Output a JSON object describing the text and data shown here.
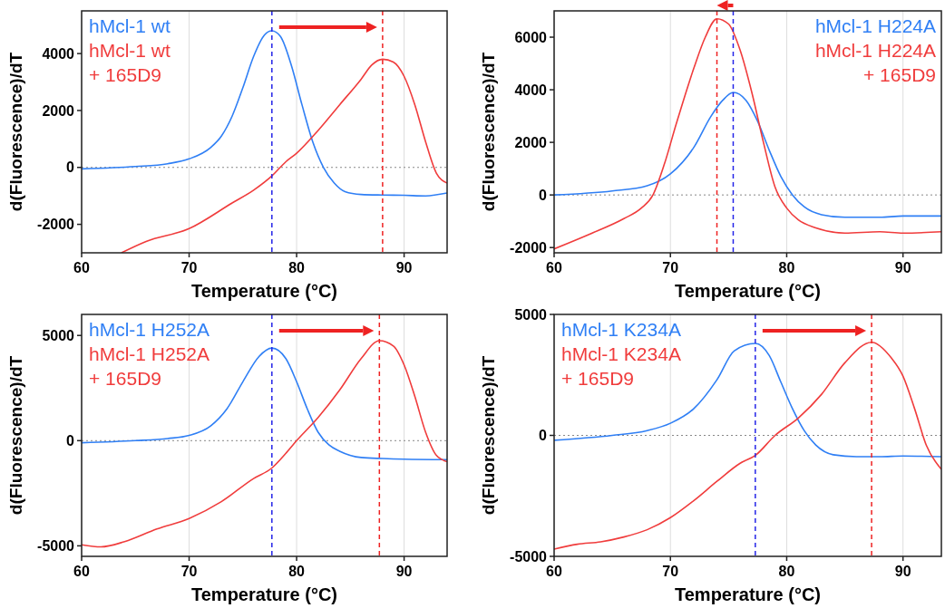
{
  "chart_data": [
    {
      "type": "line",
      "xlabel": "Temperature (°C)",
      "ylabel": "d(Fluorescence)/dT",
      "xlim": [
        60,
        94
      ],
      "ylim": [
        -3000,
        5500
      ],
      "xticks": [
        60,
        70,
        80,
        90
      ],
      "yticks": [
        -2000,
        0,
        2000,
        4000
      ],
      "grid": "x",
      "legend": "top left",
      "series": [
        {
          "name": "hMcl-1 wt",
          "color": "#2f7ff5",
          "x": [
            60,
            65,
            68,
            70,
            72,
            73,
            74,
            75,
            76,
            77,
            77.7,
            78.5,
            79.5,
            80.5,
            81.5,
            82.5,
            83.5,
            84.5,
            86,
            88,
            90,
            92,
            94
          ],
          "values": [
            -50,
            30,
            130,
            300,
            700,
            1100,
            1800,
            2800,
            3900,
            4650,
            4800,
            4600,
            3600,
            2200,
            900,
            0,
            -550,
            -850,
            -950,
            -970,
            -980,
            -1000,
            -900
          ]
        },
        {
          "name": "hMcl-1 wt + 165D9",
          "color": "#f03c3c",
          "x": [
            63.7,
            66,
            70,
            74,
            76,
            77.7,
            79,
            80,
            82,
            84,
            86,
            87,
            88,
            89,
            90,
            91,
            92,
            93,
            94
          ],
          "values": [
            -3000,
            -2600,
            -2150,
            -1250,
            -800,
            -300,
            200,
            500,
            1300,
            2200,
            3100,
            3600,
            3800,
            3700,
            3200,
            2200,
            900,
            -200,
            -550
          ]
        }
      ],
      "ref_lines": [
        {
          "axis": "y",
          "value": 0,
          "color": "#888888",
          "line_style": "dotted"
        },
        {
          "axis": "x",
          "value": 77.7,
          "color": "#2424e8",
          "line_style": "dashed"
        },
        {
          "axis": "x",
          "value": 88,
          "color": "#ee2222",
          "line_style": "dashed"
        }
      ]
    },
    {
      "type": "line",
      "xlabel": "Temperature (°C)",
      "ylabel": "d(Fluorescence)/dT",
      "xlim": [
        60,
        93.3
      ],
      "ylim": [
        -2200,
        7000
      ],
      "xticks": [
        60,
        70,
        80,
        90
      ],
      "yticks": [
        -2000,
        0,
        2000,
        4000,
        6000
      ],
      "grid": "x",
      "legend": "top right",
      "series": [
        {
          "name": "hMcl-1 H224A",
          "color": "#2f7ff5",
          "x": [
            60,
            65,
            68,
            70,
            72,
            73.5,
            74.5,
            75.4,
            76.5,
            77.5,
            78.5,
            79.5,
            80.5,
            81.5,
            83,
            85,
            88,
            90,
            93.3
          ],
          "values": [
            0,
            150,
            350,
            800,
            1800,
            3000,
            3600,
            3900,
            3600,
            2800,
            1700,
            700,
            0,
            -450,
            -750,
            -850,
            -850,
            -800,
            -800
          ]
        },
        {
          "name": "hMcl-1 H224A + 165D9",
          "color": "#f03c3c",
          "x": [
            60,
            63,
            66,
            67.5,
            68.5,
            69.5,
            70.5,
            72,
            73,
            74,
            75,
            76,
            77,
            78,
            79,
            80,
            81,
            82.5,
            85,
            88,
            90,
            93.3
          ],
          "values": [
            -2050,
            -1500,
            -900,
            -500,
            0,
            1200,
            2700,
            4800,
            6000,
            6700,
            6500,
            5500,
            3900,
            2000,
            300,
            -500,
            -950,
            -1250,
            -1450,
            -1400,
            -1450,
            -1400
          ]
        }
      ],
      "ref_lines": [
        {
          "axis": "y",
          "value": 0,
          "color": "#888888",
          "line_style": "dotted"
        },
        {
          "axis": "x",
          "value": 75.4,
          "color": "#2424e8",
          "line_style": "dashed"
        },
        {
          "axis": "x",
          "value": 74,
          "color": "#ee2222",
          "line_style": "dashed"
        }
      ]
    },
    {
      "type": "line",
      "xlabel": "Temperature (°C)",
      "ylabel": "d(Fluorescence)/dT",
      "xlim": [
        60,
        94
      ],
      "ylim": [
        -5500,
        6000
      ],
      "xticks": [
        60,
        70,
        80,
        90
      ],
      "yticks": [
        -5000,
        0,
        5000
      ],
      "grid": "x",
      "legend": "top left",
      "series": [
        {
          "name": "hMcl-1 H252A",
          "color": "#2f7ff5",
          "x": [
            60,
            65,
            68,
            70,
            72,
            73.5,
            75,
            76.5,
            77.7,
            79,
            80,
            81,
            82,
            83,
            84,
            86,
            88,
            90,
            94
          ],
          "values": [
            -100,
            0,
            100,
            250,
            700,
            1500,
            2800,
            4000,
            4400,
            3900,
            2800,
            1500,
            400,
            -200,
            -500,
            -800,
            -850,
            -880,
            -900
          ]
        },
        {
          "name": "hMcl-1 H252A + 165D9",
          "color": "#f03c3c",
          "x": [
            60,
            61.8,
            64,
            67,
            70,
            73,
            76,
            77.7,
            79,
            80,
            82,
            84,
            86,
            87.7,
            89,
            90,
            91,
            92,
            93,
            94
          ],
          "values": [
            -4950,
            -5050,
            -4800,
            -4200,
            -3700,
            -2900,
            -1800,
            -1300,
            -600,
            0,
            1100,
            2400,
            3900,
            4750,
            4500,
            3600,
            2100,
            400,
            -700,
            -1000
          ]
        }
      ],
      "ref_lines": [
        {
          "axis": "y",
          "value": 0,
          "color": "#888888",
          "line_style": "dotted"
        },
        {
          "axis": "x",
          "value": 77.7,
          "color": "#2424e8",
          "line_style": "dashed"
        },
        {
          "axis": "x",
          "value": 87.7,
          "color": "#ee2222",
          "line_style": "dashed"
        }
      ]
    },
    {
      "type": "line",
      "xlabel": "Temperature (°C)",
      "ylabel": "d(Fluorescence)/dT",
      "xlim": [
        60,
        93.3
      ],
      "ylim": [
        -5000,
        5000
      ],
      "xticks": [
        60,
        70,
        80,
        90
      ],
      "yticks": [
        -5000,
        0,
        5000
      ],
      "grid": "x",
      "legend": "top left",
      "series": [
        {
          "name": "hMcl-1 K234A",
          "color": "#2f7ff5",
          "x": [
            60,
            65,
            68,
            70,
            72,
            74,
            75.5,
            77.3,
            78.5,
            79.5,
            80.5,
            81.5,
            82.5,
            84,
            86,
            88,
            90,
            93.3
          ],
          "values": [
            -200,
            0,
            200,
            500,
            1100,
            2300,
            3500,
            3800,
            3300,
            2200,
            1100,
            200,
            -400,
            -800,
            -880,
            -880,
            -850,
            -880
          ]
        },
        {
          "name": "hMcl-1 K234A + 165D9",
          "color": "#f03c3c",
          "x": [
            60,
            62,
            64,
            66,
            68,
            70,
            72,
            74,
            76,
            77.3,
            79,
            81,
            83,
            85,
            87.3,
            89,
            90,
            91,
            92,
            93.3
          ],
          "values": [
            -4700,
            -4500,
            -4400,
            -4200,
            -3900,
            -3400,
            -2700,
            -1900,
            -1150,
            -830,
            0,
            720,
            1700,
            3000,
            3850,
            3200,
            2450,
            1100,
            -400,
            -1400
          ]
        }
      ],
      "ref_lines": [
        {
          "axis": "y",
          "value": 0,
          "color": "#888888",
          "line_style": "dotted"
        },
        {
          "axis": "x",
          "value": 77.3,
          "color": "#2424e8",
          "line_style": "dashed"
        },
        {
          "axis": "x",
          "value": 87.3,
          "color": "#ee2222",
          "line_style": "dashed"
        }
      ]
    }
  ]
}
